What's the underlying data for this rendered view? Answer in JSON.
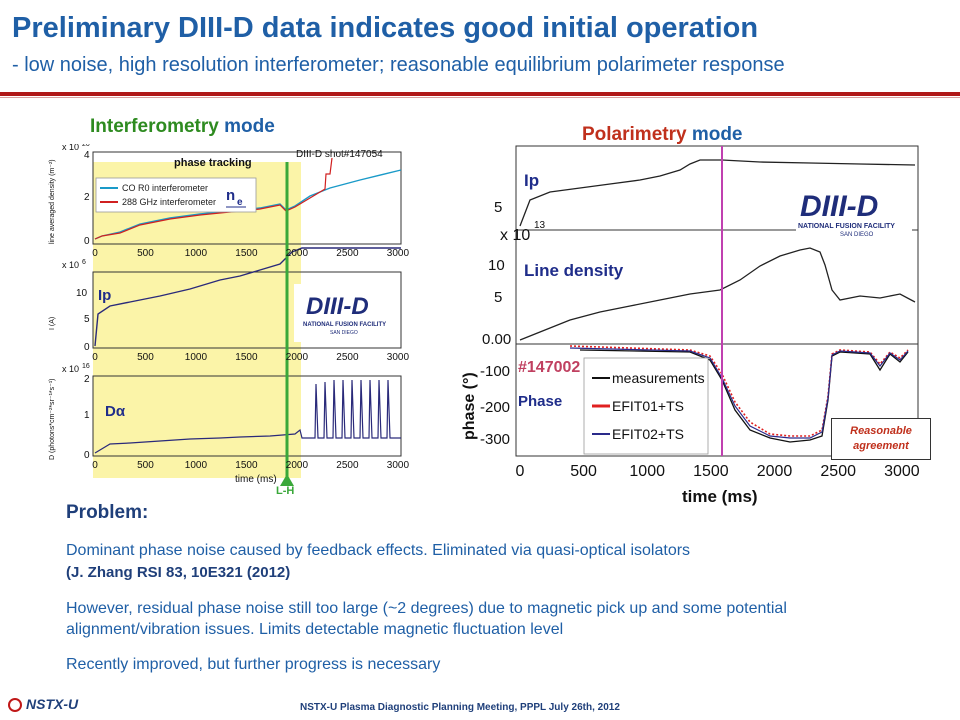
{
  "header": {
    "title": "Preliminary DIII-D data indicates good initial operation",
    "subtitle": "- low noise, high resolution interferometer; reasonable equilibrium polarimeter response"
  },
  "interferometry": {
    "mode_word": "Interferometry",
    "mode_suffix": "mode",
    "shot_label": "DIII-D shot#147054",
    "phase_tracking": "phase tracking",
    "legend": [
      "CO  R0 interferometer",
      "288 GHz interferometer"
    ],
    "ne_label": "n",
    "ne_sub": "e",
    "ip_label": "Ip",
    "da_label": "Dα",
    "lh_label": "L-H",
    "xlabel": "time (ms)",
    "ylabels": [
      "line averaged density (m⁻²)",
      "I  (A)",
      "D  (photons*cm⁻²*sr⁻¹*s⁻¹)"
    ],
    "exp_labels": [
      "x 10",
      "x 10",
      "x 10"
    ],
    "exp_values": [
      "20",
      "6",
      "16"
    ],
    "xticks": [
      "0",
      "500",
      "1000",
      "1500",
      "2000",
      "2500",
      "3000"
    ]
  },
  "polarimetry": {
    "mode_word": "Polarimetry",
    "mode_suffix": "mode",
    "ip_label": "Ip",
    "line_density_label": "Line density",
    "phase_label": "Phase",
    "shot_label": "#147002",
    "legend": [
      "measurements",
      "EFIT01+TS",
      "EFIT02+TS"
    ],
    "xlabel": "time (ms)",
    "ylabel": "phase (°)",
    "exp_label": "x 10",
    "exp_value": "13",
    "xticks": [
      "0",
      "500",
      "1000",
      "1500",
      "2000",
      "2500",
      "3000"
    ],
    "badge": "Reasonable agreement"
  },
  "logo": {
    "big": "DIII-D",
    "small": "NATIONAL FUSION FACILITY",
    "city": "SAN DIEGO"
  },
  "problem": {
    "title": "Problem:",
    "p1": "Dominant phase noise caused by feedback effects. Eliminated via quasi-optical isolators",
    "p1_ref": "(J. Zhang RSI 83, 10E321 (2012)",
    "p2": "However, residual phase noise still too large (~2 degrees) due to magnetic pick up and some potential alignment/vibration issues. Limits detectable magnetic fluctuation level",
    "p3": "Recently improved, but further progress is necessary"
  },
  "footer": {
    "logo_text": "NSTX-U",
    "text": "NSTX-U Plasma Diagnostic Planning Meeting, PPPL July 26th, 2012"
  },
  "colors": {
    "title_blue": "#1f5fa6",
    "green": "#2e8b20",
    "red": "#c0301c",
    "navy": "#2a2a7a",
    "teal": "#1a9ac8"
  }
}
